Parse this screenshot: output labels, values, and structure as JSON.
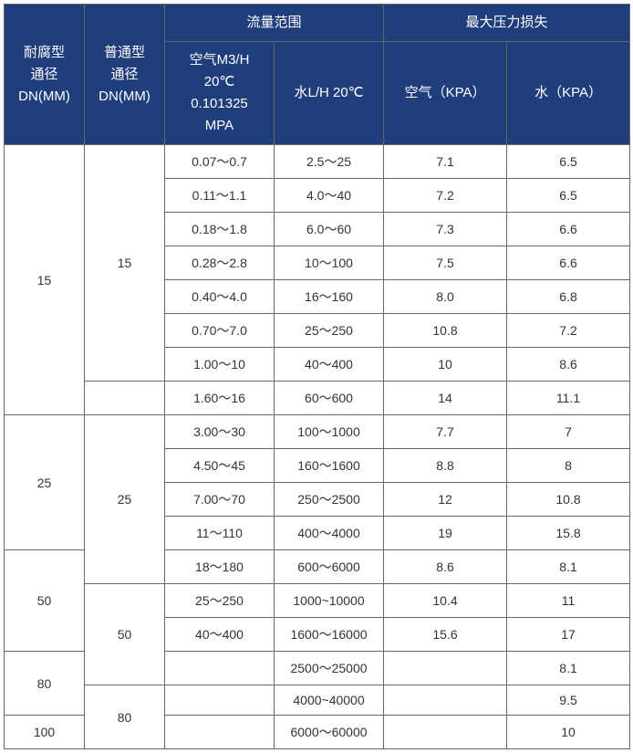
{
  "headers": {
    "corrosion_dn": "耐腐型\n通径\nDN(MM)",
    "normal_dn": "普通型\n通径\nDN(MM)",
    "flow_range": "流量范围",
    "max_pressure_loss": "最大压力损失",
    "air_flow": "空气M3/H\n20℃\n0.101325\nMPA",
    "water_flow": "水L/H 20℃",
    "air_pressure": "空气（KPA）",
    "water_pressure": "水（KPA）"
  },
  "colors": {
    "header_bg": "#213e7c",
    "header_text": "#ffffff",
    "cell_bg": "#ffffff",
    "cell_text": "#333333",
    "border": "#666666"
  },
  "rows": [
    {
      "corrosion_dn": "15",
      "corrosion_span": 8,
      "normal_dn": "15",
      "normal_span": 7,
      "air_flow": "0.07～0.7",
      "water_flow": "2.5～25",
      "air_p": "7.1",
      "water_p": "6.5"
    },
    {
      "air_flow": "0.11～1.1",
      "water_flow": "4.0～40",
      "air_p": "7.2",
      "water_p": "6.5"
    },
    {
      "air_flow": "0.18～1.8",
      "water_flow": "6.0～60",
      "air_p": "7.3",
      "water_p": "6.6"
    },
    {
      "air_flow": "0.28～2.8",
      "water_flow": "10～100",
      "air_p": "7.5",
      "water_p": "6.6"
    },
    {
      "air_flow": "0.40～4.0",
      "water_flow": "16～160",
      "air_p": "8.0",
      "water_p": "6.8"
    },
    {
      "air_flow": "0.70～7.0",
      "water_flow": "25～250",
      "air_p": "10.8",
      "water_p": "7.2"
    },
    {
      "air_flow": "1.00～10",
      "water_flow": "40～400",
      "air_p": "10",
      "water_p": "8.6"
    },
    {
      "normal_dn": "",
      "normal_span": 1,
      "air_flow": "1.60～16",
      "water_flow": "60～600",
      "air_p": "14",
      "water_p": "11.1"
    },
    {
      "corrosion_dn": "25",
      "corrosion_span": 4,
      "normal_dn": "25",
      "normal_span": 5,
      "air_flow": "3.00～30",
      "water_flow": "100～1000",
      "air_p": "7.7",
      "water_p": "7"
    },
    {
      "air_flow": "4.50～45",
      "water_flow": "160～1600",
      "air_p": "8.8",
      "water_p": "8"
    },
    {
      "air_flow": "7.00～70",
      "water_flow": "250～2500",
      "air_p": "12",
      "water_p": "10.8"
    },
    {
      "air_flow": "11～110",
      "water_flow": "400～4000",
      "air_p": "19",
      "water_p": "15.8"
    },
    {
      "corrosion_dn": "50",
      "corrosion_span": 3,
      "air_flow": "18～180",
      "water_flow": "600～6000",
      "air_p": "8.6",
      "water_p": "8.1"
    },
    {
      "normal_dn": "50",
      "normal_span": 3,
      "air_flow": "25～250",
      "water_flow": "1000~10000",
      "air_p": "10.4",
      "water_p": "11"
    },
    {
      "air_flow": "40～400",
      "water_flow": "1600～16000",
      "air_p": "15.6",
      "water_p": "17"
    },
    {
      "corrosion_dn": "80",
      "corrosion_span": 2,
      "air_flow": "",
      "water_flow": "2500～25000",
      "air_p": "",
      "water_p": "8.1"
    },
    {
      "normal_dn": "80",
      "normal_span": 2,
      "air_flow": "",
      "water_flow": "4000~40000",
      "air_p": "",
      "water_p": "9.5"
    },
    {
      "corrosion_dn": "100",
      "corrosion_span": 2,
      "air_flow": "",
      "water_flow": "6000～60000",
      "air_p": "",
      "water_p": "10"
    }
  ]
}
